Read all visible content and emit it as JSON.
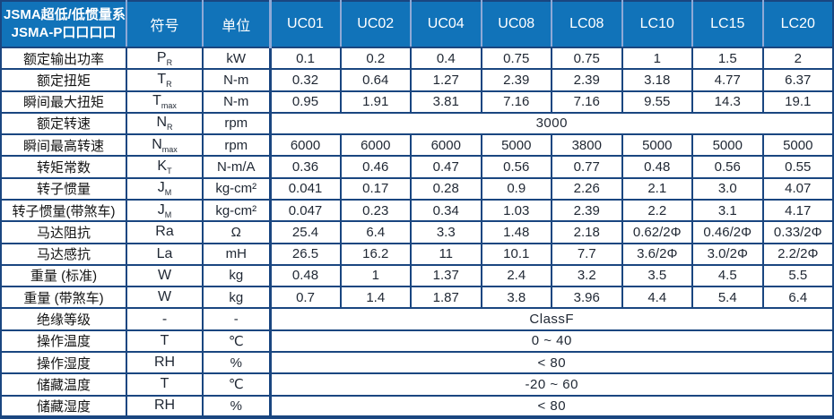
{
  "table": {
    "title_line1": "JSMA超低/低惯量系列",
    "title_line2": "JSMA-P口口口口",
    "col_symbol": "符号",
    "col_unit": "单位",
    "models": [
      "UC01",
      "UC02",
      "UC04",
      "UC08",
      "LC08",
      "LC10",
      "LC15",
      "LC20"
    ],
    "rows": [
      {
        "label": "额定输出功率",
        "sym": "P",
        "sub": "R",
        "unit": "kW",
        "values": [
          "0.1",
          "0.2",
          "0.4",
          "0.75",
          "0.75",
          "1",
          "1.5",
          "2"
        ]
      },
      {
        "label": "额定扭矩",
        "sym": "T",
        "sub": "R",
        "unit": "N-m",
        "values": [
          "0.32",
          "0.64",
          "1.27",
          "2.39",
          "2.39",
          "3.18",
          "4.77",
          "6.37"
        ]
      },
      {
        "label": "瞬间最大扭矩",
        "sym": "T",
        "sub": "max",
        "unit": "N-m",
        "values": [
          "0.95",
          "1.91",
          "3.81",
          "7.16",
          "7.16",
          "9.55",
          "14.3",
          "19.1"
        ]
      },
      {
        "label": "额定转速",
        "sym": "N",
        "sub": "R",
        "unit": "rpm",
        "merged": "3000"
      },
      {
        "label": "瞬间最高转速",
        "sym": "N",
        "sub": "max",
        "unit": "rpm",
        "values": [
          "6000",
          "6000",
          "6000",
          "5000",
          "3800",
          "5000",
          "5000",
          "5000"
        ]
      },
      {
        "label": "转矩常数",
        "sym": "K",
        "sub": "T",
        "unit": "N-m/A",
        "values": [
          "0.36",
          "0.46",
          "0.47",
          "0.56",
          "0.77",
          "0.48",
          "0.56",
          "0.55"
        ]
      },
      {
        "label": "转子惯量",
        "sym": "J",
        "sub": "M",
        "unit": "kg-cm²",
        "values": [
          "0.041",
          "0.17",
          "0.28",
          "0.9",
          "2.26",
          "2.1",
          "3.0",
          "4.07"
        ]
      },
      {
        "label": "转子惯量(带煞车)",
        "sym": "J",
        "sub": "M",
        "unit": "kg-cm²",
        "values": [
          "0.047",
          "0.23",
          "0.34",
          "1.03",
          "2.39",
          "2.2",
          "3.1",
          "4.17"
        ]
      },
      {
        "label": "马达阻抗",
        "sym": "Ra",
        "sub": "",
        "unit": "Ω",
        "values": [
          "25.4",
          "6.4",
          "3.3",
          "1.48",
          "2.18",
          "0.62/2Φ",
          "0.46/2Φ",
          "0.33/2Φ"
        ]
      },
      {
        "label": "马达感抗",
        "sym": "La",
        "sub": "",
        "unit": "mH",
        "values": [
          "26.5",
          "16.2",
          "11",
          "10.1",
          "7.7",
          "3.6/2Φ",
          "3.0/2Φ",
          "2.2/2Φ"
        ]
      },
      {
        "label": "重量 (标准)",
        "sym": "W",
        "sub": "",
        "unit": "kg",
        "values": [
          "0.48",
          "1",
          "1.37",
          "2.4",
          "3.2",
          "3.5",
          "4.5",
          "5.5"
        ]
      },
      {
        "label": "重量 (带煞车)",
        "sym": "W",
        "sub": "",
        "unit": "kg",
        "values": [
          "0.7",
          "1.4",
          "1.87",
          "3.8",
          "3.96",
          "4.4",
          "5.4",
          "6.4"
        ]
      },
      {
        "label": "绝缘等级",
        "sym": "-",
        "sub": "",
        "unit": "-",
        "merged": "ClassF"
      },
      {
        "label": "操作温度",
        "sym": "T",
        "sub": "",
        "unit": "℃",
        "merged": "0 ~ 40"
      },
      {
        "label": "操作湿度",
        "sym": "RH",
        "sub": "",
        "unit": "%",
        "merged": "< 80"
      },
      {
        "label": "储藏温度",
        "sym": "T",
        "sub": "",
        "unit": "℃",
        "merged": "-20 ~ 60"
      },
      {
        "label": "储藏湿度",
        "sym": "RH",
        "sub": "",
        "unit": "%",
        "merged": "< 80"
      }
    ]
  },
  "colors": {
    "header_bg": "#1173B9",
    "header_separator": "#8FA9D6",
    "border": "#1A4680",
    "header_text": "#FFFFFF",
    "label_text": "#141414",
    "value_text": "#1F2733"
  }
}
